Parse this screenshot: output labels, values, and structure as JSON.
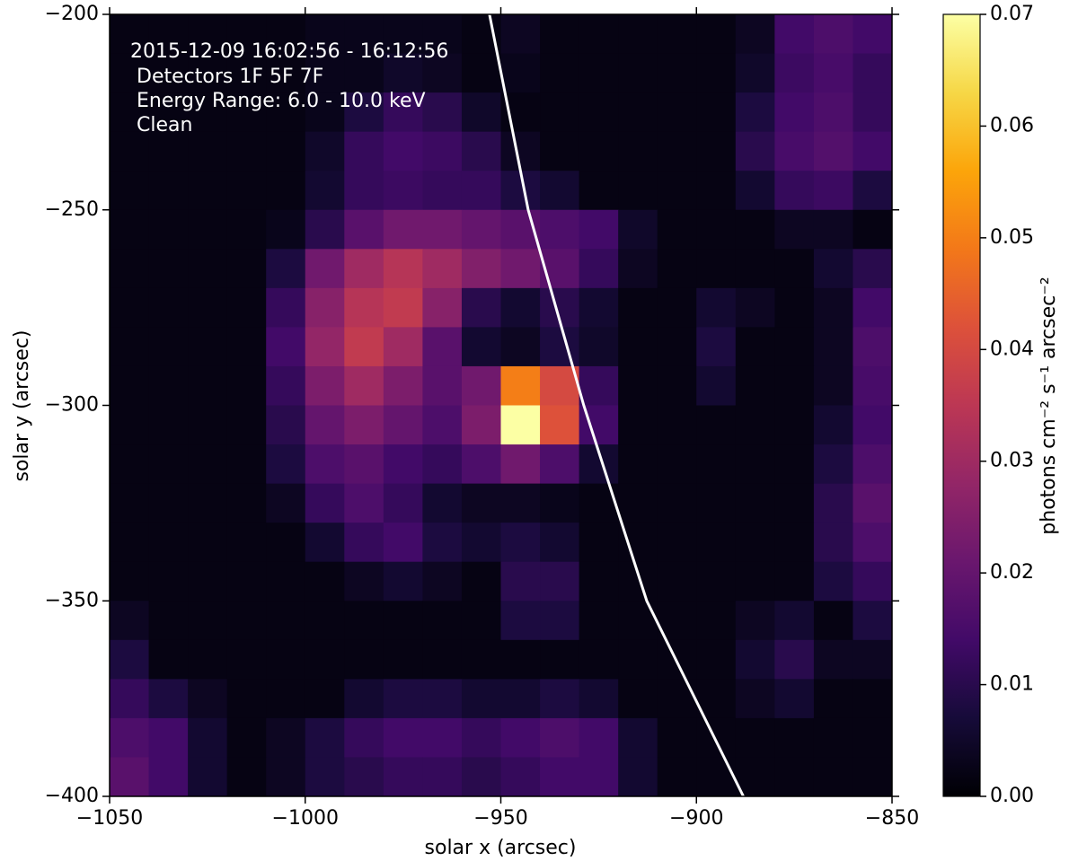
{
  "chart_data": {
    "type": "heatmap",
    "annotation": [
      "2015-12-09 16:02:56 - 16:12:56",
      "Detectors 1F 5F 7F",
      "Energy Range: 6.0 - 10.0 keV",
      "Clean"
    ],
    "xlabel": "solar x (arcsec)",
    "ylabel": "solar y (arcsec)",
    "colorbar_label": "photons cm⁻² s⁻¹ arcsec⁻²",
    "colormap": "inferno",
    "xlim": [
      -1050,
      -850
    ],
    "ylim": [
      -400,
      -200
    ],
    "zlim": [
      0,
      0.07
    ],
    "xticks": [
      {
        "value": -1050,
        "label": "−1050"
      },
      {
        "value": -1000,
        "label": "−1000"
      },
      {
        "value": -950,
        "label": "−950"
      },
      {
        "value": -900,
        "label": "−900"
      },
      {
        "value": -850,
        "label": "−850"
      }
    ],
    "yticks": [
      {
        "value": -200,
        "label": "−200"
      },
      {
        "value": -250,
        "label": "−250"
      },
      {
        "value": -300,
        "label": "−300"
      },
      {
        "value": -350,
        "label": "−350"
      },
      {
        "value": -400,
        "label": "−400"
      }
    ],
    "zticks": [
      {
        "value": 0,
        "label": "0.00"
      },
      {
        "value": 0.01,
        "label": "0.01"
      },
      {
        "value": 0.02,
        "label": "0.02"
      },
      {
        "value": 0.03,
        "label": "0.03"
      },
      {
        "value": 0.04,
        "label": "0.04"
      },
      {
        "value": 0.05,
        "label": "0.05"
      },
      {
        "value": 0.06,
        "label": "0.06"
      },
      {
        "value": 0.07,
        "label": "0.07"
      }
    ],
    "x": [
      -1045,
      -1035,
      -1025,
      -1015,
      -1005,
      -995,
      -985,
      -975,
      -965,
      -955,
      -945,
      -935,
      -925,
      -915,
      -905,
      -895,
      -885,
      -875,
      -865,
      -855
    ],
    "y": [
      -205,
      -215,
      -225,
      -235,
      -245,
      -255,
      -265,
      -275,
      -285,
      -295,
      -305,
      -315,
      -325,
      -335,
      -345,
      -355,
      -365,
      -375,
      -385,
      -395
    ],
    "z": [
      [
        0.002,
        0.002,
        0.002,
        0.002,
        0.002,
        0.003,
        0.003,
        0.003,
        0.003,
        0.002,
        0.004,
        0.002,
        0.002,
        0.002,
        0.002,
        0.002,
        0.004,
        0.014,
        0.016,
        0.014
      ],
      [
        0.002,
        0.002,
        0.002,
        0.002,
        0.002,
        0.003,
        0.003,
        0.005,
        0.004,
        0.002,
        0.003,
        0.002,
        0.002,
        0.002,
        0.002,
        0.002,
        0.005,
        0.013,
        0.015,
        0.012
      ],
      [
        0.002,
        0.002,
        0.002,
        0.002,
        0.002,
        0.003,
        0.008,
        0.012,
        0.01,
        0.005,
        0.002,
        0.002,
        0.002,
        0.002,
        0.002,
        0.002,
        0.008,
        0.014,
        0.016,
        0.012
      ],
      [
        0.002,
        0.002,
        0.002,
        0.002,
        0.002,
        0.005,
        0.012,
        0.014,
        0.013,
        0.01,
        0.004,
        0.002,
        0.002,
        0.002,
        0.002,
        0.002,
        0.01,
        0.015,
        0.017,
        0.014
      ],
      [
        0.002,
        0.002,
        0.002,
        0.002,
        0.002,
        0.006,
        0.012,
        0.013,
        0.012,
        0.012,
        0.008,
        0.006,
        0.002,
        0.002,
        0.002,
        0.002,
        0.006,
        0.012,
        0.013,
        0.008
      ],
      [
        0.002,
        0.002,
        0.002,
        0.002,
        0.003,
        0.01,
        0.018,
        0.022,
        0.022,
        0.02,
        0.018,
        0.016,
        0.014,
        0.005,
        0.002,
        0.002,
        0.002,
        0.004,
        0.004,
        0.002
      ],
      [
        0.002,
        0.002,
        0.002,
        0.002,
        0.008,
        0.022,
        0.03,
        0.034,
        0.03,
        0.025,
        0.022,
        0.018,
        0.012,
        0.004,
        0.002,
        0.002,
        0.002,
        0.002,
        0.006,
        0.01
      ],
      [
        0.002,
        0.002,
        0.002,
        0.002,
        0.012,
        0.026,
        0.034,
        0.036,
        0.026,
        0.01,
        0.006,
        0.01,
        0.006,
        0.002,
        0.002,
        0.006,
        0.004,
        0.002,
        0.004,
        0.014
      ],
      [
        0.002,
        0.002,
        0.002,
        0.002,
        0.014,
        0.028,
        0.036,
        0.03,
        0.018,
        0.006,
        0.004,
        0.008,
        0.005,
        0.002,
        0.002,
        0.008,
        0.002,
        0.002,
        0.004,
        0.016
      ],
      [
        0.002,
        0.002,
        0.002,
        0.002,
        0.012,
        0.024,
        0.03,
        0.024,
        0.018,
        0.022,
        0.05,
        0.04,
        0.012,
        0.002,
        0.002,
        0.006,
        0.002,
        0.002,
        0.004,
        0.015
      ],
      [
        0.002,
        0.002,
        0.002,
        0.002,
        0.01,
        0.02,
        0.024,
        0.02,
        0.016,
        0.024,
        0.07,
        0.042,
        0.014,
        0.002,
        0.002,
        0.002,
        0.002,
        0.002,
        0.006,
        0.014
      ],
      [
        0.002,
        0.002,
        0.002,
        0.002,
        0.008,
        0.016,
        0.018,
        0.014,
        0.012,
        0.016,
        0.022,
        0.016,
        0.006,
        0.002,
        0.002,
        0.002,
        0.002,
        0.002,
        0.008,
        0.016
      ],
      [
        0.002,
        0.002,
        0.002,
        0.002,
        0.004,
        0.012,
        0.016,
        0.012,
        0.006,
        0.004,
        0.004,
        0.003,
        0.002,
        0.002,
        0.002,
        0.002,
        0.002,
        0.002,
        0.01,
        0.018
      ],
      [
        0.002,
        0.002,
        0.002,
        0.002,
        0.002,
        0.006,
        0.012,
        0.014,
        0.008,
        0.006,
        0.008,
        0.006,
        0.002,
        0.002,
        0.002,
        0.002,
        0.002,
        0.002,
        0.01,
        0.016
      ],
      [
        0.002,
        0.002,
        0.002,
        0.002,
        0.002,
        0.002,
        0.004,
        0.006,
        0.004,
        0.002,
        0.01,
        0.01,
        0.002,
        0.002,
        0.002,
        0.002,
        0.002,
        0.002,
        0.008,
        0.012
      ],
      [
        0.004,
        0.002,
        0.002,
        0.002,
        0.002,
        0.002,
        0.002,
        0.002,
        0.002,
        0.002,
        0.008,
        0.008,
        0.002,
        0.002,
        0.002,
        0.002,
        0.004,
        0.006,
        0.002,
        0.008
      ],
      [
        0.008,
        0.002,
        0.002,
        0.002,
        0.002,
        0.002,
        0.002,
        0.002,
        0.002,
        0.002,
        0.002,
        0.002,
        0.002,
        0.002,
        0.002,
        0.002,
        0.006,
        0.01,
        0.004,
        0.004
      ],
      [
        0.012,
        0.008,
        0.004,
        0.002,
        0.002,
        0.002,
        0.006,
        0.008,
        0.008,
        0.006,
        0.006,
        0.008,
        0.006,
        0.002,
        0.002,
        0.002,
        0.004,
        0.006,
        0.002,
        0.002
      ],
      [
        0.016,
        0.014,
        0.006,
        0.002,
        0.004,
        0.008,
        0.012,
        0.014,
        0.014,
        0.012,
        0.014,
        0.016,
        0.014,
        0.006,
        0.002,
        0.002,
        0.002,
        0.002,
        0.002,
        0.002
      ],
      [
        0.018,
        0.014,
        0.006,
        0.002,
        0.004,
        0.008,
        0.01,
        0.012,
        0.012,
        0.01,
        0.012,
        0.014,
        0.014,
        0.006,
        0.002,
        0.002,
        0.002,
        0.002,
        0.002,
        0.002
      ]
    ],
    "limb": {
      "color": "#ffffff",
      "x": [
        -952.9,
        -943,
        -928.8,
        -912.7,
        -888
      ],
      "y": [
        -200,
        -250,
        -300,
        -350,
        -400
      ]
    }
  }
}
